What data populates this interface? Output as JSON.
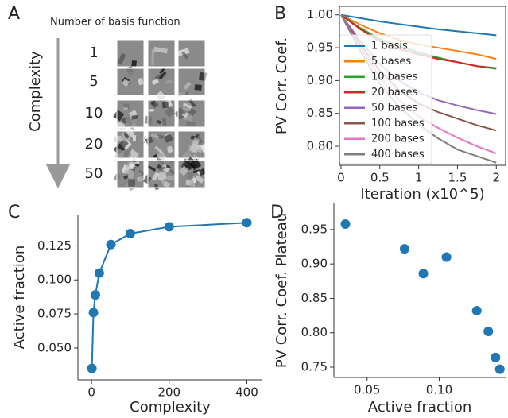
{
  "panel_a": {
    "letter": "A",
    "column_title": "Number of basis function",
    "row_axis_label": "Complexity",
    "rows": [
      "1",
      "5",
      "10",
      "20",
      "50"
    ]
  },
  "chart_data": [
    {
      "type": "line",
      "panel": "B",
      "xlabel": "Iteration (x10^5)",
      "ylabel": "PV Corr. Coef.",
      "x": [
        0,
        0.25,
        0.5,
        0.75,
        1,
        1.25,
        1.5,
        1.75,
        2
      ],
      "xlim": [
        -0.02,
        2.12
      ],
      "xticks": [
        0,
        0.5,
        1,
        1.5,
        2
      ],
      "ylim": [
        0.771,
        1.013
      ],
      "yticks": [
        {
          "value": 1,
          "label": "1.00"
        },
        0.95,
        {
          "value": 0.9,
          "label": "0.90"
        },
        0.85,
        {
          "value": 0.8,
          "label": "0.80"
        }
      ],
      "legend": "lower left",
      "series": [
        {
          "name": "1 basis",
          "color": "#1f77b4",
          "values": [
            1.0,
            0.995,
            0.99,
            0.986,
            0.982,
            0.978,
            0.975,
            0.972,
            0.969
          ]
        },
        {
          "name": "5 bases",
          "color": "#ff7f0e",
          "values": [
            1.0,
            0.985,
            0.972,
            0.962,
            0.955,
            0.95,
            0.945,
            0.94,
            0.933
          ]
        },
        {
          "name": "10 bases",
          "color": "#2ca02c",
          "values": [
            1.0,
            0.98,
            0.963,
            0.952,
            0.943,
            0.935,
            0.928,
            0.922,
            0.918
          ]
        },
        {
          "name": "20 bases",
          "color": "#d62728",
          "values": [
            1.0,
            0.978,
            0.96,
            0.948,
            0.94,
            0.933,
            0.928,
            0.922,
            0.919
          ]
        },
        {
          "name": "50 bases",
          "color": "#9467bd",
          "values": [
            1.0,
            0.96,
            0.925,
            0.9,
            0.882,
            0.87,
            0.862,
            0.855,
            0.849
          ]
        },
        {
          "name": "100 bases",
          "color": "#8c564b",
          "values": [
            1.0,
            0.955,
            0.915,
            0.885,
            0.865,
            0.852,
            0.842,
            0.832,
            0.824
          ]
        },
        {
          "name": "200 bases",
          "color": "#e377c2",
          "values": [
            1.0,
            0.95,
            0.905,
            0.87,
            0.845,
            0.828,
            0.813,
            0.8,
            0.789
          ]
        },
        {
          "name": "400 bases",
          "color": "#7f7f7f",
          "values": [
            1.0,
            0.945,
            0.895,
            0.86,
            0.833,
            0.812,
            0.795,
            0.785,
            0.775
          ]
        }
      ]
    },
    {
      "type": "line",
      "panel": "C",
      "xlabel": "Complexity",
      "ylabel": "Active fraction",
      "markers": true,
      "color": "#1f77b4",
      "x": [
        1,
        5,
        10,
        20,
        50,
        100,
        200,
        400
      ],
      "values": [
        0.035,
        0.076,
        0.089,
        0.105,
        0.126,
        0.134,
        0.139,
        0.142
      ],
      "xlim": [
        -35,
        440
      ],
      "xticks": [
        0,
        200,
        400
      ],
      "ylim": [
        0.0266,
        0.148
      ],
      "yticks": [
        {
          "value": 0.05,
          "label": "0.050"
        },
        {
          "value": 0.075,
          "label": "0.075"
        },
        {
          "value": 0.1,
          "label": "0.100"
        },
        {
          "value": 0.125,
          "label": "0.125"
        }
      ]
    },
    {
      "type": "scatter",
      "panel": "D",
      "xlabel": "Active fraction",
      "ylabel": "PV Corr. Coef. Plateau",
      "color": "#1f77b4",
      "x": [
        0.035,
        0.076,
        0.089,
        0.105,
        0.126,
        0.134,
        0.139,
        0.142
      ],
      "values": [
        0.958,
        0.922,
        0.886,
        0.91,
        0.832,
        0.802,
        0.764,
        0.747
      ],
      "xlim": [
        0.027,
        0.146
      ],
      "xticks": [
        0.05,
        {
          "value": 0.1,
          "label": "0.10"
        }
      ],
      "ylim": [
        0.735,
        0.988
      ],
      "yticks": [
        0.95,
        {
          "value": 0.9,
          "label": "0.90"
        },
        0.85,
        {
          "value": 0.8,
          "label": "0.80"
        },
        0.75
      ]
    }
  ]
}
